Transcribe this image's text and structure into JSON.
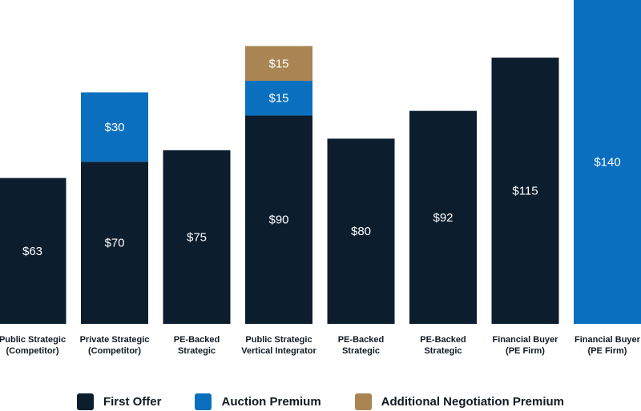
{
  "chart_data": {
    "type": "stacked-bar",
    "title": "",
    "xlabel": "",
    "ylabel": "",
    "ylim": [
      0,
      140
    ],
    "colors": {
      "first_offer": "#0c1d2e",
      "auction_premium": "#0a6fbf",
      "additional_negotiation_premium": "#a98553"
    },
    "categories": [
      [
        "Public Strategic",
        "(Competitor)"
      ],
      [
        "Private Strategic",
        "(Competitor)"
      ],
      [
        "PE-Backed",
        "Strategic"
      ],
      [
        "Public Strategic",
        "Vertical Integrator"
      ],
      [
        "PE-Backed",
        "Strategic"
      ],
      [
        "PE-Backed",
        "Strategic"
      ],
      [
        "Financial Buyer",
        "(PE Firm)"
      ],
      [
        "Financial Buyer",
        "(PE Firm)"
      ]
    ],
    "series": [
      {
        "key": "first_offer",
        "name": "First Offer",
        "values": [
          63,
          70,
          75,
          90,
          80,
          92,
          115,
          null
        ],
        "labels": [
          "$63",
          "$70",
          "$75",
          "$90",
          "$80",
          "$92",
          "$115",
          null
        ]
      },
      {
        "key": "auction_premium",
        "name": "Auction Premium",
        "values": [
          null,
          30,
          null,
          15,
          null,
          null,
          null,
          140
        ],
        "labels": [
          null,
          "$30",
          null,
          "$15",
          null,
          null,
          null,
          "$140"
        ]
      },
      {
        "key": "additional_negotiation_premium",
        "name": "Additional Negotiation Premium",
        "values": [
          null,
          null,
          null,
          15,
          null,
          null,
          null,
          null
        ],
        "labels": [
          null,
          null,
          null,
          "$15",
          null,
          null,
          null,
          null
        ]
      }
    ]
  },
  "legend": {
    "items": [
      {
        "label": "First Offer",
        "color": "#0c1d2e"
      },
      {
        "label": "Auction Premium",
        "color": "#0a6fbf"
      },
      {
        "label": "Additional Negotiation Premium",
        "color": "#a98553"
      }
    ]
  }
}
